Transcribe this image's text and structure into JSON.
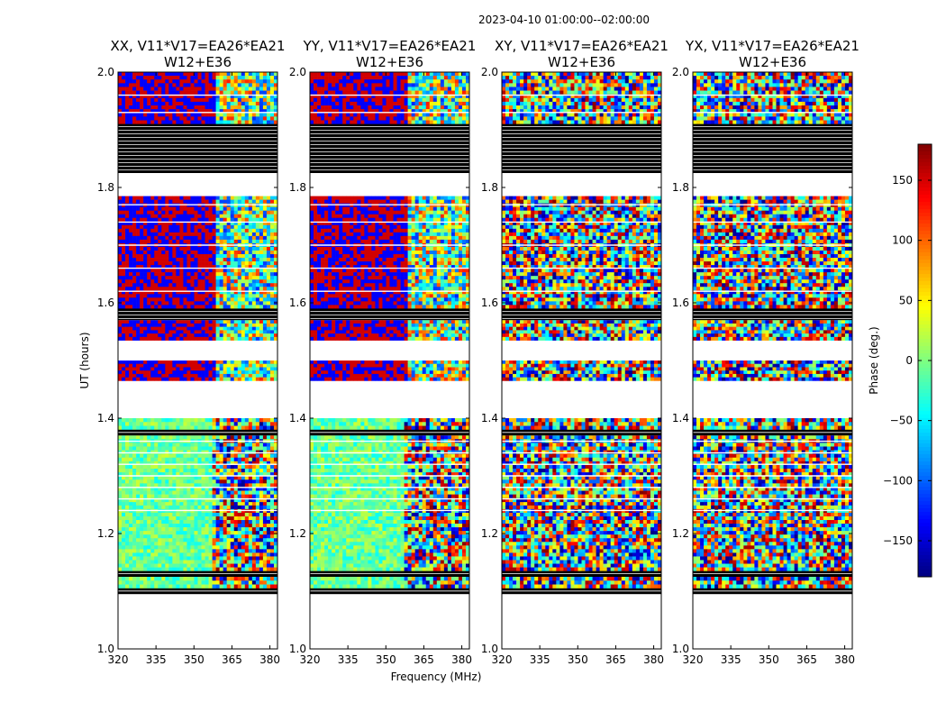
{
  "chart_data": {
    "type": "heatmap",
    "suptitle": "2023-04-10  01:00:00--02:00:00",
    "panels": [
      {
        "title_line1": "XX, V11*V17=EA26*EA21",
        "title_line2": "W12+E36"
      },
      {
        "title_line1": "YY, V11*V17=EA26*EA21",
        "title_line2": "W12+E36"
      },
      {
        "title_line1": "XY, V11*V17=EA26*EA21",
        "title_line2": "W12+E36"
      },
      {
        "title_line1": "YX, V11*V17=EA26*EA21",
        "title_line2": "W12+E36"
      }
    ],
    "xlabel": "Frequency (MHz)",
    "ylabel": "UT (hours)",
    "xlim": [
      320,
      383
    ],
    "ylim": [
      1.0,
      2.0
    ],
    "xticks": [
      320,
      335,
      350,
      365,
      380
    ],
    "yticks": [
      "1.0",
      "1.2",
      "1.4",
      "1.6",
      "1.8",
      "2.0"
    ],
    "colorbar": {
      "label": "Phase (deg.)",
      "range": [
        -180,
        180
      ],
      "ticks": [
        150,
        100,
        50,
        0,
        -50,
        -100,
        -150
      ],
      "tick_labels": [
        "150",
        "100",
        "50",
        "0",
        "−50",
        "−100",
        "−150"
      ],
      "colormap": "jet"
    },
    "blank_ut_ranges": [
      [
        1.0,
        1.095
      ],
      [
        1.52,
        1.535
      ],
      [
        1.415,
        1.465
      ],
      [
        1.5,
        1.53
      ],
      [
        1.785,
        1.825
      ]
    ],
    "flagged_ut_ranges": [
      [
        1.095,
        1.105
      ],
      [
        1.125,
        1.135
      ],
      [
        1.37,
        1.38
      ],
      [
        1.57,
        1.59
      ],
      [
        1.825,
        1.91
      ]
    ],
    "data_ut_segments": [
      [
        1.105,
        1.125
      ],
      [
        1.135,
        1.255
      ],
      [
        1.255,
        1.37
      ],
      [
        1.38,
        1.4
      ],
      [
        1.465,
        1.5
      ],
      [
        1.535,
        1.57
      ],
      [
        1.59,
        1.785
      ],
      [
        1.91,
        2.0
      ]
    ]
  }
}
